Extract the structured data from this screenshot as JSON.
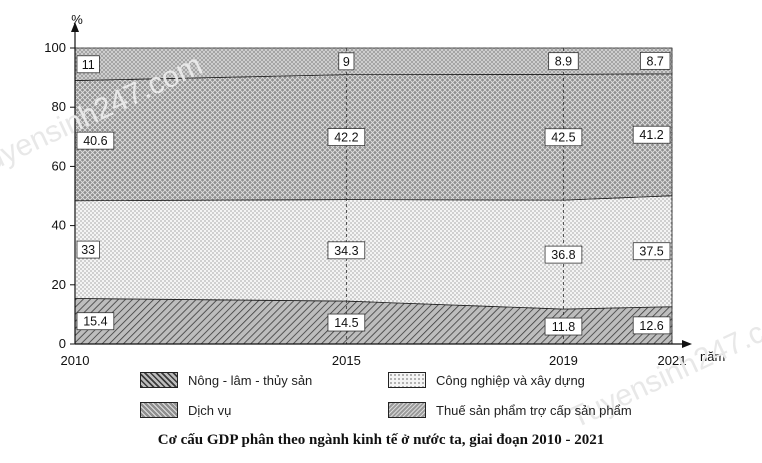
{
  "chart_data": {
    "type": "area",
    "stacked": true,
    "caption": "Cơ cấu GDP phân theo ngành kinh tế ở nước ta, giai đoạn 2010 - 2021",
    "ylabel": "%",
    "xlabel": "năm",
    "x": [
      "2010",
      "2015",
      "2019",
      "2021"
    ],
    "x_numeric": [
      2010,
      2015,
      2019,
      2021
    ],
    "ylim": [
      0,
      100
    ],
    "yticks": [
      0,
      20,
      40,
      60,
      80,
      100
    ],
    "series": [
      {
        "name": "Nông - lâm - thủy sản",
        "values": [
          15.4,
          14.5,
          11.8,
          12.6
        ],
        "pattern": "diagonal",
        "label_values": [
          "15.4",
          "14.5",
          "11.8",
          "12.6"
        ]
      },
      {
        "name": "Công nghiệp và xây dựng",
        "values": [
          33,
          34.3,
          36.8,
          37.5
        ],
        "pattern": "dots",
        "label_values": [
          "33",
          "34.3",
          "36.8",
          "37.5"
        ]
      },
      {
        "name": "Dịch vụ",
        "values": [
          40.6,
          42.2,
          42.5,
          41.2
        ],
        "pattern": "crosshatch",
        "label_values": [
          "40.6",
          "42.2",
          "42.5",
          "41.2"
        ]
      },
      {
        "name": "Thuế sản phẩm trợ cấp sản phẩm",
        "values": [
          11,
          9,
          8.9,
          8.7
        ],
        "pattern": "crosshatch-dense",
        "label_values": [
          "11",
          "9",
          "8.9",
          "8.7"
        ]
      }
    ],
    "legend_placement": "bottom",
    "grid": false
  },
  "watermark": {
    "text": "Tuyensinh247.com"
  }
}
